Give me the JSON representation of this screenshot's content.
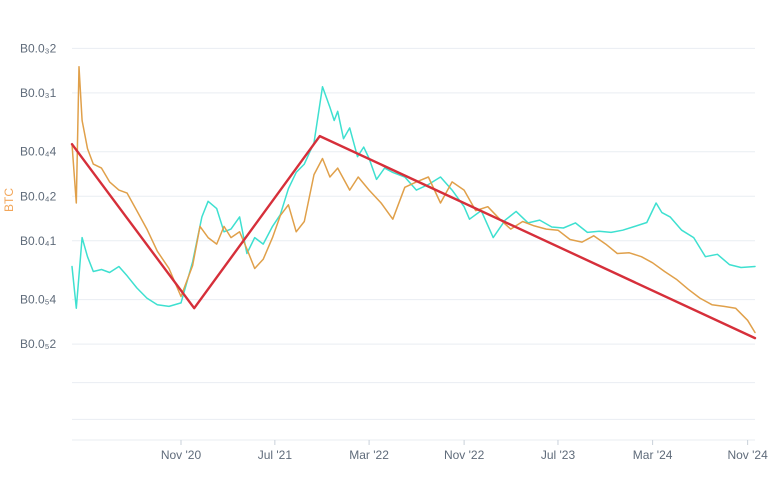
{
  "chart_data": {
    "type": "line",
    "ylabel": "BTC",
    "y_scale": "log",
    "y_tick_labels": [
      "B0.0₃2",
      "B0.0₃1",
      "B0.0₄4",
      "B0.0₄2",
      "B0.0₄1",
      "B0.0₅4",
      "B0.0₅2"
    ],
    "y_tick_values": [
      0.002,
      0.001,
      0.0004,
      0.0002,
      0.0001,
      4e-05,
      2e-05
    ],
    "ylim": [
      4.5e-06,
      0.0025
    ],
    "x_tick_labels": [
      "Nov '20",
      "Jul '21",
      "Mar '22",
      "Nov '22",
      "Jul '23",
      "Mar '24",
      "Nov '24"
    ],
    "x_tick_values": [
      "2020-11-01",
      "2021-07-01",
      "2022-03-01",
      "2022-11-01",
      "2023-07-01",
      "2024-03-01",
      "2024-11-01"
    ],
    "xlim": [
      "2020-01-25",
      "2024-11-20"
    ],
    "grid": true,
    "legend": "none",
    "colors": {
      "teal": "#3ee0d0",
      "orange": "#e0a04a",
      "trend": "#d62f3a",
      "grid": "#e9edf2",
      "label": "#5f6b7a",
      "axis_title": "#f2a65a"
    },
    "series": [
      {
        "color_key": "teal",
        "x": [
          "2020-01-25",
          "2020-02-05",
          "2020-02-20",
          "2020-03-05",
          "2020-03-20",
          "2020-04-10",
          "2020-05-01",
          "2020-05-25",
          "2020-06-15",
          "2020-07-10",
          "2020-08-05",
          "2020-09-01",
          "2020-10-01",
          "2020-11-01",
          "2020-12-01",
          "2020-12-25",
          "2021-01-10",
          "2021-02-01",
          "2021-02-20",
          "2021-03-10",
          "2021-04-01",
          "2021-04-20",
          "2021-05-10",
          "2021-06-01",
          "2021-06-25",
          "2021-07-15",
          "2021-08-05",
          "2021-08-25",
          "2021-09-15",
          "2021-10-10",
          "2021-11-01",
          "2021-11-20",
          "2021-12-01",
          "2021-12-10",
          "2021-12-25",
          "2022-01-10",
          "2022-01-30",
          "2022-02-15",
          "2022-03-01",
          "2022-03-20",
          "2022-04-10",
          "2022-05-01",
          "2022-06-01",
          "2022-07-01",
          "2022-08-01",
          "2022-09-01",
          "2022-10-01",
          "2022-11-01",
          "2022-11-15",
          "2022-12-15",
          "2023-01-15",
          "2023-02-15",
          "2023-03-15",
          "2023-04-15",
          "2023-05-15",
          "2023-06-15",
          "2023-07-15",
          "2023-08-15",
          "2023-09-15",
          "2023-10-15",
          "2023-11-15",
          "2023-12-15",
          "2024-01-15",
          "2024-02-15",
          "2024-03-10",
          "2024-03-25",
          "2024-04-15",
          "2024-05-15",
          "2024-06-15",
          "2024-07-15",
          "2024-08-15",
          "2024-09-15",
          "2024-10-15",
          "2024-11-20"
        ],
        "y": [
          6.7e-05,
          3.5e-05,
          0.000105,
          7.8e-05,
          6.2e-05,
          6.4e-05,
          6.1e-05,
          6.7e-05,
          5.8e-05,
          4.8e-05,
          4.1e-05,
          3.7e-05,
          3.6e-05,
          3.8e-05,
          7.2e-05,
          0.000145,
          0.000185,
          0.000165,
          0.000115,
          0.00012,
          0.000145,
          8.2e-05,
          0.000105,
          9.5e-05,
          0.000125,
          0.00015,
          0.000225,
          0.00029,
          0.00033,
          0.00046,
          0.0011,
          0.0008,
          0.00065,
          0.00075,
          0.00049,
          0.00058,
          0.00037,
          0.00043,
          0.00036,
          0.00026,
          0.00031,
          0.00029,
          0.00027,
          0.00022,
          0.00024,
          0.00027,
          0.00022,
          0.00017,
          0.00014,
          0.00016,
          0.000105,
          0.000138,
          0.000158,
          0.000132,
          0.000138,
          0.000124,
          0.000122,
          0.000132,
          0.000114,
          0.000116,
          0.000114,
          0.000118,
          0.000125,
          0.000133,
          0.00018,
          0.000155,
          0.000145,
          0.000118,
          0.000105,
          7.8e-05,
          8.1e-05,
          6.9e-05,
          6.6e-05,
          6.7e-05
        ]
      },
      {
        "color_key": "orange",
        "x": [
          "2020-01-25",
          "2020-02-05",
          "2020-02-12",
          "2020-02-20",
          "2020-03-05",
          "2020-03-20",
          "2020-04-10",
          "2020-05-01",
          "2020-05-25",
          "2020-06-15",
          "2020-07-10",
          "2020-08-05",
          "2020-09-01",
          "2020-10-01",
          "2020-11-01",
          "2020-12-01",
          "2020-12-20",
          "2021-01-10",
          "2021-02-01",
          "2021-02-20",
          "2021-03-10",
          "2021-04-01",
          "2021-04-20",
          "2021-05-10",
          "2021-06-01",
          "2021-06-25",
          "2021-07-15",
          "2021-08-05",
          "2021-08-25",
          "2021-09-15",
          "2021-10-10",
          "2021-11-01",
          "2021-11-20",
          "2021-12-10",
          "2022-01-10",
          "2022-02-01",
          "2022-03-01",
          "2022-04-01",
          "2022-05-01",
          "2022-06-01",
          "2022-07-01",
          "2022-08-01",
          "2022-09-01",
          "2022-10-01",
          "2022-11-01",
          "2022-12-01",
          "2023-01-01",
          "2023-02-01",
          "2023-03-01",
          "2023-04-01",
          "2023-05-01",
          "2023-06-01",
          "2023-07-01",
          "2023-08-01",
          "2023-09-01",
          "2023-10-01",
          "2023-11-01",
          "2023-12-01",
          "2024-01-01",
          "2024-02-01",
          "2024-03-01",
          "2024-04-01",
          "2024-05-01",
          "2024-06-01",
          "2024-07-01",
          "2024-08-01",
          "2024-09-01",
          "2024-10-01",
          "2024-11-01",
          "2024-11-20"
        ],
        "y": [
          0.00045,
          0.00018,
          0.0015,
          0.00065,
          0.00042,
          0.00033,
          0.00031,
          0.00025,
          0.00022,
          0.00021,
          0.00016,
          0.00012,
          8.5e-05,
          6.5e-05,
          4.2e-05,
          6.8e-05,
          0.000125,
          0.000105,
          9.5e-05,
          0.000125,
          0.000105,
          0.000115,
          8.8e-05,
          6.5e-05,
          7.5e-05,
          0.000105,
          0.000148,
          0.000175,
          0.000115,
          0.000135,
          0.00028,
          0.00036,
          0.00027,
          0.00031,
          0.00022,
          0.00027,
          0.00022,
          0.00018,
          0.00014,
          0.00023,
          0.00025,
          0.00027,
          0.00018,
          0.00025,
          0.00022,
          0.00016,
          0.00017,
          0.00014,
          0.00012,
          0.000135,
          0.000126,
          0.00012,
          0.000118,
          0.000102,
          9.8e-05,
          0.000108,
          9.5e-05,
          8.2e-05,
          8.3e-05,
          7.8e-05,
          7.1e-05,
          6.2e-05,
          5.5e-05,
          4.7e-05,
          4.1e-05,
          3.7e-05,
          3.6e-05,
          3.5e-05,
          2.9e-05,
          2.4e-05
        ]
      },
      {
        "color_key": "trend",
        "x": [
          "2020-01-25",
          "2020-12-05",
          "2021-10-25",
          "2024-11-20"
        ],
        "y": [
          0.00045,
          3.5e-05,
          0.00051,
          2.2e-05
        ]
      }
    ]
  }
}
